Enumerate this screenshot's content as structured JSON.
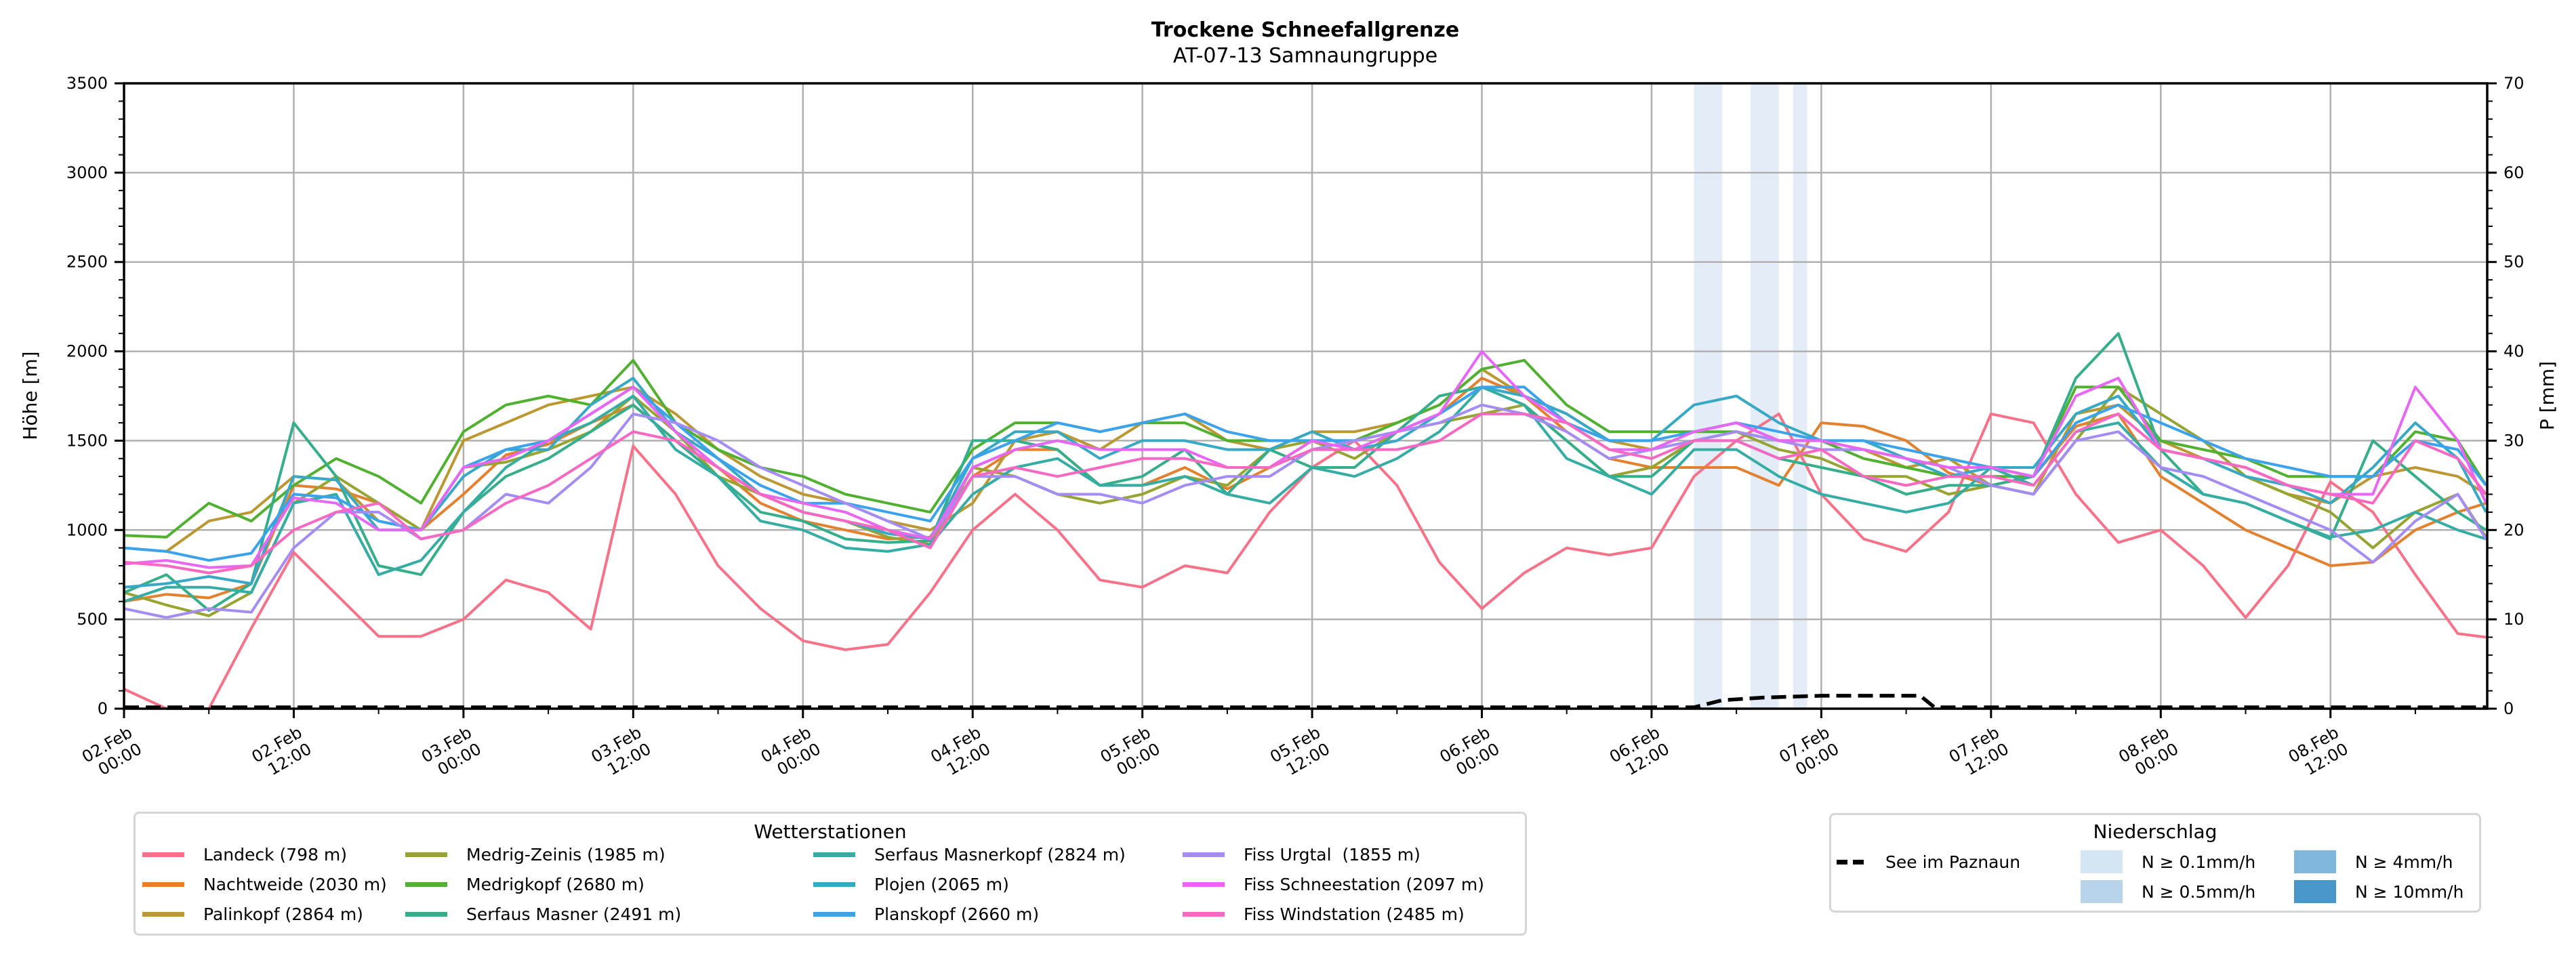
{
  "chart_data": {
    "type": "line",
    "title": "Trockene Schneefallgrenze",
    "subtitle": "AT-07-13 Samnaungruppe",
    "ylabel": "Höhe [m]",
    "ylabel_right": "P [mm]",
    "ylim": [
      0,
      3500
    ],
    "ylim_right": [
      0,
      70
    ],
    "yticks": [
      "0",
      "500",
      "1000",
      "1500",
      "2000",
      "2500",
      "3000",
      "3500"
    ],
    "yticks_right": [
      "0",
      "10",
      "20",
      "30",
      "40",
      "50",
      "60",
      "70"
    ],
    "grid": true,
    "x_unit": "hours since 02.Feb 00:00",
    "xlim_hours": [
      0,
      167
    ],
    "xticks": [
      {
        "hour": 0,
        "label": [
          "02.Feb",
          "00:00"
        ]
      },
      {
        "hour": 12,
        "label": [
          "02.Feb",
          "12:00"
        ]
      },
      {
        "hour": 24,
        "label": [
          "03.Feb",
          "00:00"
        ]
      },
      {
        "hour": 36,
        "label": [
          "03.Feb",
          "12:00"
        ]
      },
      {
        "hour": 48,
        "label": [
          "04.Feb",
          "00:00"
        ]
      },
      {
        "hour": 60,
        "label": [
          "04.Feb",
          "12:00"
        ]
      },
      {
        "hour": 72,
        "label": [
          "05.Feb",
          "00:00"
        ]
      },
      {
        "hour": 84,
        "label": [
          "05.Feb",
          "12:00"
        ]
      },
      {
        "hour": 96,
        "label": [
          "06.Feb",
          "00:00"
        ]
      },
      {
        "hour": 108,
        "label": [
          "06.Feb",
          "12:00"
        ]
      },
      {
        "hour": 120,
        "label": [
          "07.Feb",
          "00:00"
        ]
      },
      {
        "hour": 132,
        "label": [
          "07.Feb",
          "12:00"
        ]
      },
      {
        "hour": 144,
        "label": [
          "08.Feb",
          "00:00"
        ]
      },
      {
        "hour": 156,
        "label": [
          "08.Feb",
          "12:00"
        ]
      }
    ],
    "x_hours": [
      0,
      3,
      6,
      9,
      12,
      15,
      18,
      21,
      24,
      27,
      30,
      33,
      36,
      39,
      42,
      45,
      48,
      51,
      54,
      57,
      60,
      63,
      66,
      69,
      72,
      75,
      78,
      81,
      84,
      87,
      90,
      93,
      96,
      99,
      102,
      105,
      108,
      111,
      114,
      117,
      120,
      123,
      126,
      129,
      132,
      135,
      138,
      141,
      144,
      147,
      150,
      153,
      156,
      159,
      162,
      165,
      167
    ],
    "series": [
      {
        "name": "Landeck (798 m)",
        "color": "#f77189",
        "values": [
          110,
          0,
          0,
          450,
          875,
          640,
          405,
          405,
          500,
          720,
          650,
          445,
          1470,
          1200,
          800,
          560,
          380,
          330,
          360,
          650,
          1000,
          1200,
          1000,
          720,
          680,
          800,
          760,
          1100,
          1350,
          1500,
          1250,
          820,
          560,
          760,
          900,
          860,
          900,
          1300,
          1500,
          1650,
          1200,
          950,
          880,
          1100,
          1650,
          1600,
          1200,
          930,
          1000,
          800,
          510,
          800,
          1270,
          1100,
          750,
          420,
          400
        ]
      },
      {
        "name": "Nachtweide (2030 m)",
        "color": "#e3812f",
        "values": [
          600,
          640,
          620,
          700,
          1250,
          1230,
          1150,
          1000,
          1200,
          1420,
          1480,
          1600,
          1700,
          1500,
          1350,
          1150,
          1050,
          1000,
          950,
          960,
          1300,
          1450,
          1450,
          1250,
          1250,
          1350,
          1230,
          1350,
          1500,
          1450,
          1550,
          1650,
          1850,
          1750,
          1550,
          1400,
          1350,
          1350,
          1350,
          1250,
          1600,
          1580,
          1500,
          1320,
          1250,
          1300,
          1580,
          1650,
          1300,
          1150,
          1000,
          900,
          800,
          820,
          1000,
          1100,
          1150
        ]
      },
      {
        "name": "Palinkopf (2864 m)",
        "color": "#bb9832",
        "values": [
          900,
          880,
          1050,
          1100,
          1300,
          1280,
          1050,
          1000,
          1500,
          1600,
          1700,
          1750,
          1800,
          1650,
          1450,
          1300,
          1200,
          1150,
          1050,
          1000,
          1150,
          1500,
          1550,
          1450,
          1600,
          1650,
          1500,
          1450,
          1550,
          1550,
          1600,
          1700,
          1900,
          1750,
          1650,
          1500,
          1450,
          1550,
          1600,
          1500,
          1500,
          1450,
          1350,
          1400,
          1250,
          1200,
          1650,
          1700,
          1500,
          1400,
          1300,
          1200,
          1150,
          1300,
          1350,
          1300,
          1200
        ]
      },
      {
        "name": "Medrig-Zeinis (1985 m)",
        "color": "#97a431",
        "values": [
          650,
          580,
          520,
          650,
          1150,
          1300,
          1150,
          1000,
          1350,
          1380,
          1450,
          1550,
          1750,
          1550,
          1300,
          1200,
          1100,
          1050,
          960,
          920,
          1350,
          1300,
          1200,
          1150,
          1200,
          1300,
          1250,
          1450,
          1500,
          1400,
          1550,
          1600,
          1650,
          1700,
          1500,
          1300,
          1350,
          1500,
          1550,
          1450,
          1400,
          1300,
          1300,
          1200,
          1250,
          1200,
          1500,
          1800,
          1650,
          1500,
          1300,
          1200,
          1100,
          900,
          1100,
          1200,
          960
        ]
      },
      {
        "name": "Medrigkopf (2680 m)",
        "color": "#50b131",
        "values": [
          970,
          960,
          1150,
          1050,
          1250,
          1400,
          1300,
          1150,
          1550,
          1700,
          1750,
          1700,
          1950,
          1600,
          1450,
          1350,
          1300,
          1200,
          1150,
          1100,
          1450,
          1600,
          1600,
          1550,
          1600,
          1600,
          1500,
          1500,
          1500,
          1500,
          1600,
          1700,
          1900,
          1950,
          1700,
          1550,
          1550,
          1550,
          1550,
          1500,
          1500,
          1400,
          1350,
          1300,
          1300,
          1300,
          1800,
          1800,
          1500,
          1450,
          1400,
          1300,
          1300,
          1300,
          1550,
          1500,
          1250
        ]
      },
      {
        "name": "Serfaus Masner (2491 m)",
        "color": "#34ae8b",
        "values": [
          650,
          750,
          550,
          700,
          1600,
          1300,
          800,
          750,
          1100,
          1300,
          1400,
          1550,
          1700,
          1500,
          1300,
          1100,
          1050,
          950,
          930,
          940,
          1500,
          1500,
          1450,
          1250,
          1300,
          1450,
          1200,
          1450,
          1350,
          1350,
          1550,
          1750,
          1800,
          1700,
          1500,
          1300,
          1300,
          1500,
          1500,
          1400,
          1350,
          1300,
          1200,
          1250,
          1250,
          1300,
          1850,
          2100,
          1450,
          1200,
          1150,
          1050,
          950,
          1500,
          1300,
          1100,
          1000
        ]
      },
      {
        "name": "Serfaus Masnerkopf (2824 m)",
        "color": "#36ada4",
        "values": [
          600,
          680,
          680,
          650,
          1150,
          1200,
          750,
          830,
          1100,
          1350,
          1500,
          1600,
          1750,
          1450,
          1300,
          1050,
          1000,
          900,
          880,
          920,
          1200,
          1350,
          1400,
          1250,
          1250,
          1300,
          1200,
          1150,
          1350,
          1300,
          1400,
          1550,
          1800,
          1700,
          1400,
          1300,
          1200,
          1450,
          1450,
          1300,
          1200,
          1150,
          1100,
          1150,
          1350,
          1250,
          1550,
          1600,
          1350,
          1200,
          1150,
          1050,
          960,
          1000,
          1100,
          1000,
          950
        ]
      },
      {
        "name": "Plojen (2065 m)",
        "color": "#38a9c5",
        "values": [
          680,
          700,
          740,
          700,
          1300,
          1280,
          1000,
          1000,
          1300,
          1450,
          1450,
          1700,
          1850,
          1550,
          1400,
          1200,
          1100,
          1050,
          980,
          950,
          1400,
          1550,
          1550,
          1400,
          1500,
          1500,
          1450,
          1450,
          1550,
          1450,
          1500,
          1650,
          1800,
          1750,
          1650,
          1500,
          1500,
          1700,
          1750,
          1600,
          1500,
          1500,
          1400,
          1300,
          1350,
          1350,
          1650,
          1750,
          1450,
          1400,
          1300,
          1250,
          1150,
          1350,
          1600,
          1400,
          1100
        ]
      },
      {
        "name": "Planskopf (2660 m)",
        "color": "#3ba3ec",
        "values": [
          900,
          880,
          830,
          870,
          1200,
          1180,
          1050,
          1000,
          1350,
          1450,
          1500,
          1650,
          1800,
          1600,
          1400,
          1250,
          1150,
          1150,
          1100,
          1050,
          1400,
          1500,
          1600,
          1550,
          1600,
          1650,
          1550,
          1500,
          1500,
          1500,
          1550,
          1650,
          1800,
          1800,
          1600,
          1500,
          1500,
          1550,
          1600,
          1550,
          1500,
          1500,
          1450,
          1400,
          1350,
          1300,
          1600,
          1700,
          1600,
          1500,
          1400,
          1350,
          1300,
          1300,
          1500,
          1450,
          1250
        ]
      },
      {
        "name": "Fiss Urgtal  (1855 m)",
        "color": "#a48cf4",
        "values": [
          560,
          510,
          560,
          540,
          900,
          1100,
          1100,
          950,
          1000,
          1200,
          1150,
          1350,
          1650,
          1600,
          1500,
          1350,
          1250,
          1150,
          1050,
          950,
          1300,
          1300,
          1200,
          1200,
          1150,
          1250,
          1300,
          1300,
          1450,
          1500,
          1550,
          1600,
          1700,
          1650,
          1550,
          1400,
          1450,
          1500,
          1550,
          1500,
          1450,
          1450,
          1400,
          1350,
          1250,
          1200,
          1500,
          1550,
          1350,
          1300,
          1200,
          1100,
          1000,
          820,
          1050,
          1200,
          950
        ]
      },
      {
        "name": "Fiss Schneestation (2097 m)",
        "color": "#e866f4",
        "values": [
          810,
          830,
          790,
          800,
          1180,
          1150,
          1000,
          1000,
          1350,
          1400,
          1500,
          1650,
          1800,
          1550,
          1350,
          1200,
          1150,
          1100,
          1000,
          950,
          1350,
          1450,
          1500,
          1450,
          1450,
          1450,
          1350,
          1350,
          1500,
          1450,
          1550,
          1650,
          2000,
          1750,
          1600,
          1450,
          1450,
          1550,
          1600,
          1500,
          1500,
          1450,
          1400,
          1350,
          1350,
          1300,
          1750,
          1850,
          1450,
          1400,
          1350,
          1250,
          1200,
          1200,
          1800,
          1500,
          1150
        ]
      },
      {
        "name": "Fiss Windstation (2485 m)",
        "color": "#f668c2",
        "values": [
          820,
          800,
          760,
          800,
          1000,
          1100,
          1150,
          950,
          1000,
          1150,
          1250,
          1400,
          1550,
          1500,
          1350,
          1200,
          1100,
          1050,
          1000,
          900,
          1300,
          1350,
          1300,
          1350,
          1400,
          1400,
          1350,
          1350,
          1450,
          1450,
          1450,
          1500,
          1650,
          1650,
          1600,
          1450,
          1400,
          1500,
          1500,
          1400,
          1450,
          1300,
          1250,
          1300,
          1300,
          1250,
          1550,
          1650,
          1450,
          1400,
          1350,
          1250,
          1200,
          1150,
          1500,
          1400,
          1200
        ]
      }
    ],
    "right_axis_series": {
      "name": "See im Paznaun",
      "color": "#000000",
      "style": "dashed",
      "hours": [
        0,
        111,
        113,
        116,
        120,
        127,
        128,
        167
      ],
      "values": [
        0,
        0,
        0.8,
        1.1,
        1.3,
        1.3,
        0,
        0
      ]
    },
    "precipitation_bands": [
      {
        "start_hour": 111,
        "end_hour": 113,
        "class": "N ≥ 0.1mm/h"
      },
      {
        "start_hour": 115,
        "end_hour": 117,
        "class": "N ≥ 0.1mm/h"
      },
      {
        "start_hour": 118,
        "end_hour": 119,
        "class": "N ≥ 0.1mm/h"
      }
    ],
    "legend_stations": {
      "title": "Wetterstationen",
      "placement": "bottom-left"
    },
    "legend_precip": {
      "title": "Niederschlag",
      "placement": "bottom-right",
      "line_label": "See im Paznaun",
      "classes": [
        {
          "label": "N ≥ 0.1mm/h",
          "color": "#d6e5f3"
        },
        {
          "label": "N ≥ 0.5mm/h",
          "color": "#b7d4ea"
        },
        {
          "label": "N ≥ 4mm/h",
          "color": "#7fb6d9"
        },
        {
          "label": "N ≥ 10mm/h",
          "color": "#4a98c9"
        }
      ],
      "band_color": "#e4edf7"
    }
  }
}
